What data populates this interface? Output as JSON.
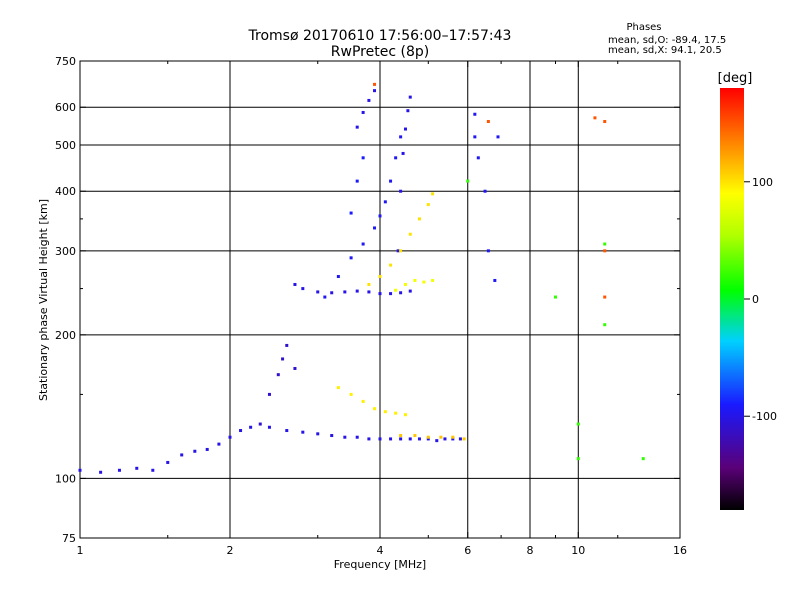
{
  "chart_data": {
    "type": "scatter",
    "title": "Tromsø 20170610 17:56:00–17:57:43",
    "subtitle": "RwPretec (8p)",
    "xlabel": "Frequency [MHz]",
    "ylabel": "Stationary phase Virtual Height [km]",
    "x_scale": "log",
    "y_scale": "log",
    "xlim": [
      1,
      16
    ],
    "ylim": [
      75,
      750
    ],
    "grid": true,
    "x_ticks": [
      "1",
      "2",
      "4",
      "6",
      "8",
      "10",
      "16"
    ],
    "x_tick_values": [
      1,
      2,
      4,
      6,
      8,
      10,
      16
    ],
    "x_minor_tick_values": [
      1.5,
      3,
      5,
      7,
      9,
      12
    ],
    "y_ticks": [
      "75",
      "100",
      "200",
      "300",
      "400",
      "500",
      "600",
      "750"
    ],
    "y_tick_values": [
      75,
      100,
      200,
      300,
      400,
      500,
      600,
      750
    ],
    "y_minor_tick_values": [
      150,
      250,
      350
    ],
    "phases_box": {
      "title": "Phases",
      "line_o": "mean, sd,O: -89.4, 17.5",
      "line_x": "mean, sd,X:  94.1, 20.5"
    },
    "colorbar": {
      "label": "[deg]",
      "min": -180,
      "max": 180,
      "ticks": [
        "100",
        "0",
        "-100"
      ],
      "tick_values": [
        100,
        0,
        -100
      ],
      "colormap": "rainbow (black → purple → blue → cyan → green → yellow → orange → red)"
    },
    "series": [
      {
        "phase": -100,
        "x": [
          1.0,
          1.1,
          1.2,
          1.3,
          1.4,
          1.5,
          1.6,
          1.7,
          1.8,
          1.9,
          2.0,
          2.1,
          2.2,
          2.4,
          2.6,
          2.8,
          3.0,
          3.2,
          3.4,
          3.6,
          3.8,
          4.0,
          4.2,
          4.4,
          4.6,
          4.8,
          5.0,
          5.2,
          5.4,
          5.6,
          5.8
        ],
        "y": [
          104,
          103,
          104,
          105,
          104,
          108,
          112,
          114,
          115,
          118,
          122,
          126,
          128,
          128,
          126,
          125,
          124,
          123,
          122,
          122,
          121,
          121,
          121,
          121,
          121,
          121,
          121,
          120,
          121,
          121,
          121
        ]
      },
      {
        "phase": -110,
        "x": [
          2.3,
          2.4,
          2.5,
          2.55,
          2.6,
          2.7
        ],
        "y": [
          130,
          150,
          165,
          178,
          190,
          170
        ]
      },
      {
        "phase": -100,
        "x": [
          2.7,
          2.8,
          3.0,
          3.2,
          3.4,
          3.6,
          3.8,
          4.0,
          4.2,
          4.4,
          4.6
        ],
        "y": [
          255,
          250,
          246,
          245,
          246,
          247,
          246,
          244,
          244,
          245,
          247
        ]
      },
      {
        "phase": -95,
        "x": [
          3.1,
          3.3,
          3.5,
          3.7,
          3.9,
          4.0,
          4.1,
          4.2,
          4.3,
          4.4
        ],
        "y": [
          240,
          265,
          290,
          310,
          335,
          355,
          380,
          420,
          470,
          520
        ]
      },
      {
        "phase": -100,
        "x": [
          4.35,
          4.4,
          4.45,
          4.5,
          4.55,
          4.6
        ],
        "y": [
          300,
          400,
          480,
          540,
          590,
          630
        ]
      },
      {
        "phase": -100,
        "x": [
          3.6,
          3.7,
          3.8,
          3.9
        ],
        "y": [
          545,
          585,
          620,
          650
        ]
      },
      {
        "phase": -90,
        "x": [
          3.5,
          3.6,
          3.7
        ],
        "y": [
          360,
          420,
          470
        ]
      },
      {
        "phase": 95,
        "x": [
          3.3,
          3.5,
          3.7,
          3.9,
          4.1,
          4.3,
          4.5
        ],
        "y": [
          155,
          150,
          145,
          140,
          138,
          137,
          136
        ]
      },
      {
        "phase": 100,
        "x": [
          3.8,
          4.0,
          4.2,
          4.4,
          4.6,
          4.8,
          5.0,
          5.1
        ],
        "y": [
          255,
          265,
          280,
          300,
          325,
          350,
          375,
          395
        ]
      },
      {
        "phase": 85,
        "x": [
          4.3,
          4.5,
          4.7,
          4.9,
          5.1
        ],
        "y": [
          248,
          255,
          260,
          258,
          260
        ]
      },
      {
        "phase": 110,
        "x": [
          4.4,
          4.7,
          5.0,
          5.3,
          5.6,
          5.9
        ],
        "y": [
          123,
          123,
          122,
          122,
          122,
          121
        ]
      },
      {
        "phase": -95,
        "x": [
          6.2,
          6.2,
          6.3,
          6.5,
          6.6,
          6.8,
          6.9
        ],
        "y": [
          580,
          520,
          470,
          400,
          300,
          260,
          520
        ]
      },
      {
        "phase": 150,
        "x": [
          3.9,
          6.6,
          11.3,
          11.3,
          11.3,
          10.8
        ],
        "y": [
          670,
          560,
          560,
          300,
          240,
          570
        ]
      },
      {
        "phase": 20,
        "x": [
          6.0,
          9.0,
          10.0,
          11.3,
          11.3,
          10.0,
          13.5
        ],
        "y": [
          420,
          240,
          110,
          310,
          210,
          130,
          110
        ]
      }
    ]
  }
}
